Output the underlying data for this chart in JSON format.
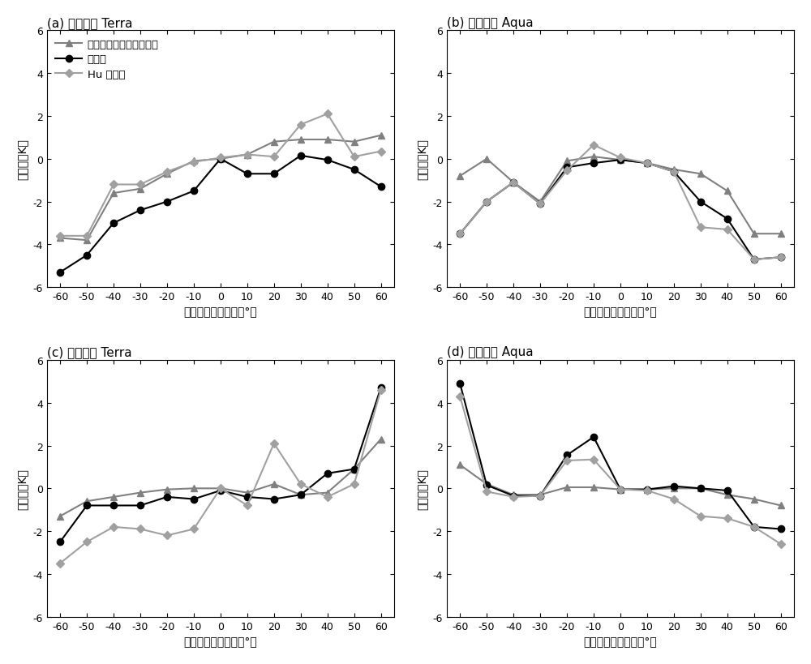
{
  "x": [
    -60,
    -50,
    -40,
    -30,
    -20,
    -10,
    0,
    10,
    20,
    30,
    40,
    50,
    60
  ],
  "panels": [
    {
      "title": "(a) 夏季白天 Terra",
      "series": [
        {
          "label": "基于地面实测数据的方法",
          "color": "#808080",
          "marker": "^",
          "markercolor": "#808080",
          "data": [
            -3.7,
            -3.8,
            -1.6,
            -1.4,
            -0.7,
            -0.1,
            0.0,
            0.2,
            0.8,
            0.9,
            0.9,
            0.8,
            1.1
          ]
        },
        {
          "label": "本发明",
          "color": "#000000",
          "marker": "o",
          "markercolor": "#000000",
          "data": [
            -5.3,
            -4.5,
            -3.0,
            -2.4,
            -2.0,
            -1.5,
            0.0,
            -0.7,
            -0.7,
            0.15,
            -0.05,
            -0.5,
            -1.3
          ]
        },
        {
          "label": "Hu 的方法",
          "color": "#a0a0a0",
          "marker": "D",
          "markercolor": "#a0a0a0",
          "data": [
            -3.6,
            -3.6,
            -1.2,
            -1.2,
            -0.6,
            -0.15,
            0.05,
            0.2,
            0.1,
            1.6,
            2.1,
            0.1,
            0.35
          ]
        }
      ],
      "ylim": [
        -6,
        6
      ],
      "ylabel": "方向性（K）",
      "xlabel": "传感器观测天顶角（°）",
      "legend": true
    },
    {
      "title": "(b) 夏季白天 Aqua",
      "series": [
        {
          "label": "基于地面实测数据的方法",
          "color": "#808080",
          "marker": "^",
          "markercolor": "#808080",
          "data": [
            -0.8,
            0.0,
            -1.1,
            -2.0,
            -0.1,
            0.1,
            -0.05,
            -0.2,
            -0.5,
            -0.7,
            -1.5,
            -3.5,
            -3.5
          ]
        },
        {
          "label": "本发明",
          "color": "#000000",
          "marker": "o",
          "markercolor": "#000000",
          "data": [
            -3.5,
            -2.0,
            -1.1,
            -2.1,
            -0.4,
            -0.2,
            -0.05,
            -0.2,
            -0.6,
            -2.0,
            -2.8,
            -4.7,
            -4.6
          ]
        },
        {
          "label": "Hu 的方法",
          "color": "#a0a0a0",
          "marker": "D",
          "markercolor": "#a0a0a0",
          "data": [
            -3.5,
            -2.0,
            -1.1,
            -2.1,
            -0.55,
            0.65,
            0.05,
            -0.2,
            -0.6,
            -3.2,
            -3.3,
            -4.7,
            -4.6
          ]
        }
      ],
      "ylim": [
        -6,
        6
      ],
      "ylabel": "方向性（K）",
      "xlabel": "传感器观测天顶角（°）",
      "legend": false
    },
    {
      "title": "(c) 冬季白天 Terra",
      "series": [
        {
          "label": "基于地面实测数据的方法",
          "color": "#808080",
          "marker": "^",
          "markercolor": "#808080",
          "data": [
            -1.3,
            -0.6,
            -0.4,
            -0.2,
            -0.05,
            0.0,
            0.0,
            -0.2,
            0.2,
            -0.3,
            -0.2,
            0.9,
            2.3
          ]
        },
        {
          "label": "本发明",
          "color": "#000000",
          "marker": "o",
          "markercolor": "#000000",
          "data": [
            -2.5,
            -0.8,
            -0.8,
            -0.8,
            -0.4,
            -0.5,
            -0.1,
            -0.4,
            -0.5,
            -0.3,
            0.7,
            0.9,
            4.7
          ]
        },
        {
          "label": "Hu 的方法",
          "color": "#a0a0a0",
          "marker": "D",
          "markercolor": "#a0a0a0",
          "data": [
            -3.5,
            -2.5,
            -1.8,
            -1.9,
            -2.2,
            -1.9,
            0.0,
            -0.8,
            2.1,
            0.2,
            -0.4,
            0.2,
            4.6
          ]
        }
      ],
      "ylim": [
        -6,
        6
      ],
      "ylabel": "方向性（K）",
      "xlabel": "传感器观测天顶角（°）",
      "legend": false
    },
    {
      "title": "(d) 冬季白天 Aqua",
      "series": [
        {
          "label": "基于地面实测数据的方法",
          "color": "#808080",
          "marker": "^",
          "markercolor": "#808080",
          "data": [
            1.1,
            0.2,
            -0.3,
            -0.3,
            0.05,
            0.05,
            -0.05,
            -0.05,
            0.0,
            0.0,
            -0.3,
            -0.5,
            -0.8
          ]
        },
        {
          "label": "本发明",
          "color": "#000000",
          "marker": "o",
          "markercolor": "#000000",
          "data": [
            4.9,
            0.15,
            -0.35,
            -0.35,
            1.55,
            2.4,
            -0.05,
            -0.05,
            0.1,
            0.0,
            -0.1,
            -1.8,
            -1.9
          ]
        },
        {
          "label": "Hu 的方法",
          "color": "#a0a0a0",
          "marker": "D",
          "markercolor": "#a0a0a0",
          "data": [
            4.3,
            -0.15,
            -0.4,
            -0.35,
            1.3,
            1.35,
            -0.05,
            -0.1,
            -0.5,
            -1.3,
            -1.4,
            -1.8,
            -2.6
          ]
        }
      ],
      "ylim": [
        -6,
        6
      ],
      "ylabel": "方向性（K）",
      "xlabel": "传感器观测天顶角（°）",
      "legend": false
    }
  ],
  "xticks": [
    -60,
    -50,
    -40,
    -30,
    -20,
    -10,
    0,
    10,
    20,
    30,
    40,
    50,
    60
  ],
  "yticks": [
    -6,
    -4,
    -2,
    0,
    2,
    4,
    6
  ],
  "background_color": "#ffffff",
  "linewidth": 1.5,
  "markersize": 6
}
